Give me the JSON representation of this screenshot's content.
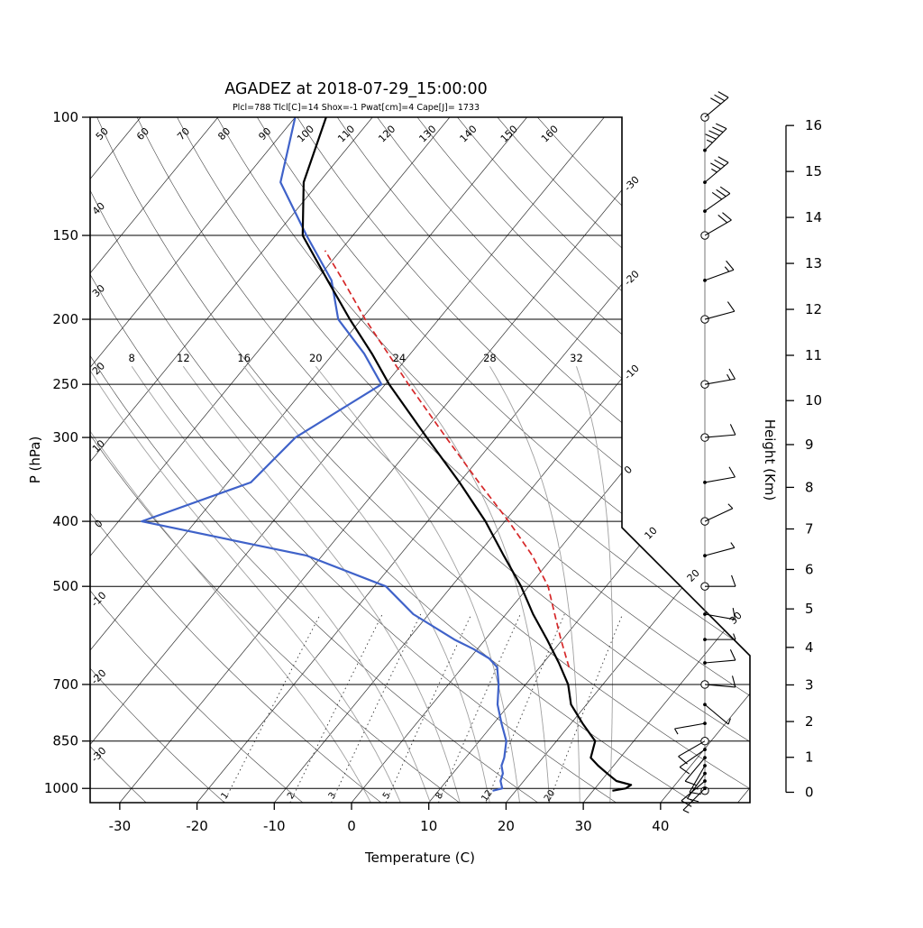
{
  "title": "AGADEZ at 2018-07-29_15:00:00",
  "subtitle": "Plcl=788 Tlcl[C]=14 Shox=-1 Pwat[cm]=4 Cape[J]= 1733",
  "axes": {
    "pressure_label": "P (hPa)",
    "temperature_label": "Temperature (C)",
    "height_label": "Height (Km)"
  },
  "chart_data": {
    "type": "skewt_log_p_sounding",
    "station": "AGADEZ",
    "datetime": "2018-07-29_15:00:00",
    "indices": {
      "Plcl": 788,
      "Tlcl_C": 14,
      "Shox": -1,
      "Pwat_cm": 4,
      "Cape_J": 1733
    },
    "pressure_ticks_hpa": [
      100,
      150,
      200,
      250,
      300,
      400,
      500,
      700,
      850,
      1000
    ],
    "temperature_ticks_c": [
      -30,
      -20,
      -10,
      0,
      10,
      20,
      30,
      40
    ],
    "height_ticks_km": [
      0,
      1,
      2,
      3,
      4,
      5,
      6,
      7,
      8,
      9,
      10,
      11,
      12,
      13,
      14,
      15,
      16
    ],
    "isotherms": {
      "from": -110,
      "to": 50,
      "step": 10,
      "edge_labels": [
        -30,
        -20,
        -10,
        0,
        10,
        20,
        30
      ]
    },
    "dry_adiabats": {
      "from": -30,
      "to": 160,
      "step": 10,
      "top_labels": [
        50,
        60,
        70,
        80,
        90,
        100,
        110,
        120,
        130,
        140,
        150,
        160
      ],
      "left_labels": [
        40,
        30,
        20,
        10,
        0,
        -10,
        -20,
        -30
      ]
    },
    "moist_adiabats": {
      "values": [
        0,
        4,
        8,
        12,
        16,
        20,
        24,
        28,
        32
      ],
      "labeled": [
        8,
        12,
        16,
        20,
        24,
        28,
        32
      ]
    },
    "mixing_ratio_g_kg": [
      1,
      2,
      3,
      5,
      8,
      12,
      20
    ],
    "temperature_profile": {
      "points_p_t": [
        [
          1008,
          32.5
        ],
        [
          1000,
          34
        ],
        [
          988,
          34.3
        ],
        [
          975,
          32
        ],
        [
          950,
          30
        ],
        [
          925,
          28
        ],
        [
          900,
          26.2
        ],
        [
          850,
          25
        ],
        [
          800,
          21.5
        ],
        [
          750,
          18
        ],
        [
          700,
          15.5
        ],
        [
          650,
          12
        ],
        [
          600,
          8
        ],
        [
          550,
          3.5
        ],
        [
          500,
          -1
        ],
        [
          450,
          -6.5
        ],
        [
          400,
          -12.5
        ],
        [
          350,
          -20
        ],
        [
          300,
          -29
        ],
        [
          250,
          -39.5
        ],
        [
          225,
          -45
        ],
        [
          200,
          -51.5
        ],
        [
          175,
          -58.5
        ],
        [
          150,
          -66.5
        ],
        [
          125,
          -72
        ],
        [
          100,
          -76
        ]
      ]
    },
    "dewpoint_profile": {
      "points_p_t": [
        [
          1008,
          17
        ],
        [
          1000,
          18
        ],
        [
          975,
          17
        ],
        [
          950,
          16.5
        ],
        [
          925,
          15.5
        ],
        [
          900,
          15
        ],
        [
          850,
          13.5
        ],
        [
          800,
          11
        ],
        [
          750,
          8.5
        ],
        [
          700,
          6.5
        ],
        [
          660,
          4.5
        ],
        [
          640,
          2.5
        ],
        [
          620,
          -0.5
        ],
        [
          600,
          -4
        ],
        [
          550,
          -12
        ],
        [
          500,
          -18.5
        ],
        [
          450,
          -32
        ],
        [
          400,
          -57
        ],
        [
          350,
          -47
        ],
        [
          300,
          -46
        ],
        [
          250,
          -40.5
        ],
        [
          225,
          -46
        ],
        [
          200,
          -53
        ],
        [
          175,
          -58
        ],
        [
          150,
          -66
        ],
        [
          125,
          -75
        ],
        [
          100,
          -80
        ]
      ]
    },
    "parcel_profile": {
      "style": "dashed",
      "points_p_t": [
        [
          660,
          13.8
        ],
        [
          600,
          9.8
        ],
        [
          550,
          6.3
        ],
        [
          500,
          2.5
        ],
        [
          450,
          -2.8
        ],
        [
          400,
          -9.5
        ],
        [
          350,
          -17.5
        ],
        [
          300,
          -26.5
        ],
        [
          250,
          -37
        ],
        [
          200,
          -49.5
        ],
        [
          175,
          -56.5
        ],
        [
          158,
          -62
        ]
      ]
    },
    "winds": [
      {
        "p": 1008,
        "spd": 2,
        "dir": 220,
        "marker": "open"
      },
      {
        "p": 1000,
        "spd": 5,
        "dir": 225,
        "marker": "dot"
      },
      {
        "p": 975,
        "spd": 10,
        "dir": 230,
        "marker": "dot"
      },
      {
        "p": 950,
        "spd": 10,
        "dir": 215,
        "marker": "dot"
      },
      {
        "p": 925,
        "spd": 15,
        "dir": 210,
        "marker": "dot"
      },
      {
        "p": 900,
        "spd": 10,
        "dir": 220,
        "marker": "dot"
      },
      {
        "p": 875,
        "spd": 10,
        "dir": 235,
        "marker": "dot"
      },
      {
        "p": 850,
        "spd": 10,
        "dir": 240,
        "marker": "open"
      },
      {
        "p": 800,
        "spd": 5,
        "dir": 260,
        "marker": "dot"
      },
      {
        "p": 750,
        "spd": 5,
        "dir": 130,
        "marker": "dot"
      },
      {
        "p": 700,
        "spd": 10,
        "dir": 95,
        "marker": "open"
      },
      {
        "p": 650,
        "spd": 10,
        "dir": 85,
        "marker": "dot"
      },
      {
        "p": 600,
        "spd": 5,
        "dir": 90,
        "marker": "dot"
      },
      {
        "p": 550,
        "spd": 10,
        "dir": 100,
        "marker": "dot"
      },
      {
        "p": 500,
        "spd": 10,
        "dir": 90,
        "marker": "open"
      },
      {
        "p": 450,
        "spd": 5,
        "dir": 75,
        "marker": "dot"
      },
      {
        "p": 400,
        "spd": 5,
        "dir": 65,
        "marker": "open"
      },
      {
        "p": 350,
        "spd": 10,
        "dir": 80,
        "marker": "dot"
      },
      {
        "p": 300,
        "spd": 10,
        "dir": 85,
        "marker": "open"
      },
      {
        "p": 250,
        "spd": 15,
        "dir": 80,
        "marker": "open"
      },
      {
        "p": 200,
        "spd": 10,
        "dir": 75,
        "marker": "open"
      },
      {
        "p": 175,
        "spd": 15,
        "dir": 70,
        "marker": "dot"
      },
      {
        "p": 150,
        "spd": 20,
        "dir": 60,
        "marker": "open"
      },
      {
        "p": 138,
        "spd": 30,
        "dir": 55,
        "marker": "dot"
      },
      {
        "p": 125,
        "spd": 35,
        "dir": 50,
        "marker": "dot"
      },
      {
        "p": 112,
        "spd": 45,
        "dir": 45,
        "marker": "dot"
      },
      {
        "p": 100,
        "spd": 30,
        "dir": 50,
        "marker": "open"
      }
    ],
    "colors": {
      "temperature": "#000000",
      "dewpoint": "#3f62c9",
      "parcel": "#d62728",
      "subtitle": "#c05a11",
      "moist_adiabat": "#a0a0a0",
      "grid": "#111111"
    },
    "layout_hints": {
      "y_axis": "log pressure 100-1050 hPa",
      "skew": "temperature skewed ~45deg",
      "grid": true
    }
  }
}
